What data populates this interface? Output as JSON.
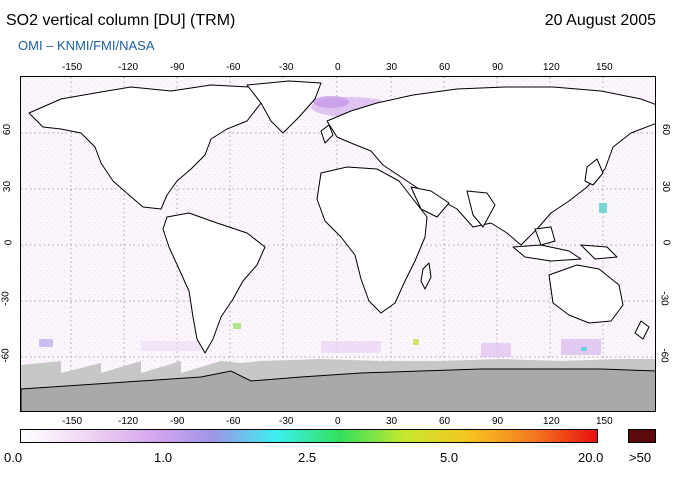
{
  "header": {
    "title": "SO2 vertical column [DU] (TRM)",
    "date": "20 August 2005",
    "subtitle": "OMI  –  KNMI/FMI/NASA"
  },
  "map": {
    "lon_ticks": [
      "-150",
      "-120",
      "-90",
      "-60",
      "-30",
      "0",
      "30",
      "60",
      "90",
      "120",
      "150"
    ],
    "lat_ticks": [
      "60",
      "30",
      "0",
      "-30",
      "-60"
    ],
    "background_color": "#fbf6fc",
    "land_outline_color": "#000000",
    "no_data_color": "#b5b5b5"
  },
  "colorbar": {
    "labels": [
      "0.0",
      "1.0",
      "2.5",
      "5.0",
      "20.0",
      ">50"
    ],
    "gradient_stops": [
      "#ffffff",
      "#f0d8f5",
      "#d9a8ee",
      "#9f95e8",
      "#3cf0f0",
      "#33e05a",
      "#c8e830",
      "#f5c520",
      "#f47a20",
      "#e81010"
    ],
    "overflow_color": "#5a0a0a"
  }
}
